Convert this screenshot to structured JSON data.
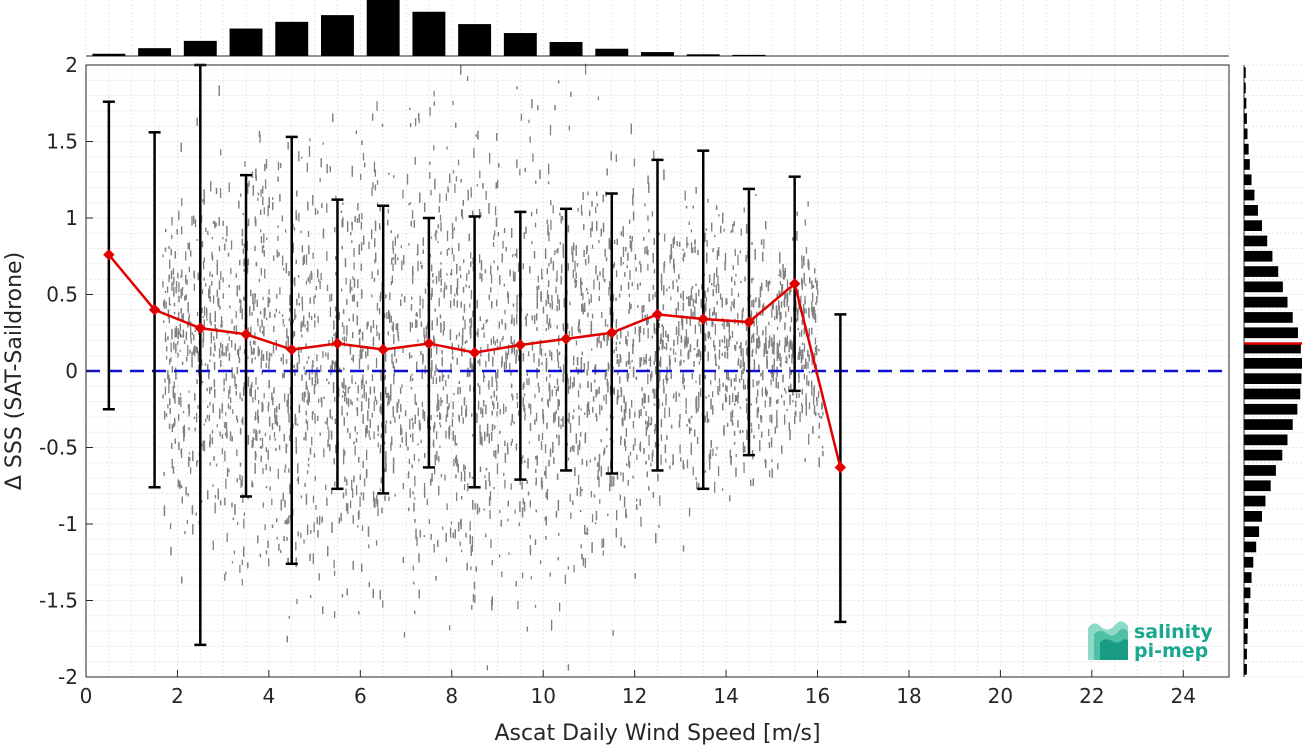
{
  "chart_data": {
    "type": "scatter",
    "xlabel": "Ascat Daily Wind Speed [m/s]",
    "ylabel": "Δ SSS (SAT-Saildrone)",
    "xlim": [
      0,
      25
    ],
    "ylim": [
      -2,
      2
    ],
    "xticks": [
      0,
      2,
      4,
      6,
      8,
      10,
      12,
      14,
      16,
      18,
      20,
      22,
      24
    ],
    "yticks": [
      -2,
      -1.5,
      -1,
      -0.5,
      0,
      0.5,
      1,
      1.5,
      2
    ],
    "xtick_labels": [
      "0",
      "2",
      "4",
      "6",
      "8",
      "10",
      "12",
      "14",
      "16",
      "18",
      "20",
      "22",
      "24"
    ],
    "ytick_labels": [
      "-2",
      "-1.5",
      "-1",
      "-0.5",
      "0",
      "0.5",
      "1",
      "1.5",
      "2"
    ],
    "grid": true,
    "colors": {
      "scatter": "#808080",
      "mean_line": "#e00000",
      "error_bars": "#000000",
      "zero_line": "#1010d0",
      "histograms": "#000000",
      "histogram_mean": "#e00000",
      "logo": "#1aa78f"
    },
    "binned_mean": {
      "x": [
        0.5,
        1.5,
        2.5,
        3.5,
        4.5,
        5.5,
        6.5,
        7.5,
        8.5,
        9.5,
        10.5,
        11.5,
        12.5,
        13.5,
        14.5,
        15.5,
        16.5
      ],
      "y": [
        0.76,
        0.4,
        0.28,
        0.24,
        0.14,
        0.18,
        0.14,
        0.18,
        0.12,
        0.17,
        0.21,
        0.25,
        0.37,
        0.34,
        0.32,
        0.57,
        -0.63
      ],
      "err_upper": [
        1.76,
        1.56,
        2.0,
        1.28,
        1.53,
        1.12,
        1.08,
        1.0,
        1.01,
        1.04,
        1.06,
        1.16,
        1.38,
        1.44,
        1.19,
        1.27,
        0.37
      ],
      "err_lower": [
        -0.25,
        -0.76,
        -1.79,
        -0.82,
        -1.26,
        -0.77,
        -0.8,
        -0.63,
        -0.76,
        -0.71,
        -0.65,
        -0.67,
        -0.65,
        -0.77,
        -0.55,
        -0.13,
        -1.64
      ]
    },
    "zero_line": 0,
    "scatter_extent": {
      "x_min": 0.5,
      "x_max": 16.2,
      "spread_by_bin": [
        0.9,
        1.4,
        1.7,
        1.9,
        2.0,
        2.0,
        2.0,
        2.0,
        2.0,
        2.0,
        1.9,
        1.8,
        1.6,
        1.4,
        1.2,
        0.9,
        0.6
      ]
    },
    "top_histogram": {
      "x": [
        0.5,
        1.5,
        2.5,
        3.5,
        4.5,
        5.5,
        6.5,
        7.5,
        8.5,
        9.5,
        10.5,
        11.5,
        12.5,
        13.5,
        14.5
      ],
      "counts": [
        0.04,
        0.14,
        0.27,
        0.49,
        0.61,
        0.73,
        1.0,
        0.79,
        0.57,
        0.41,
        0.25,
        0.13,
        0.07,
        0.03,
        0.02
      ]
    },
    "right_histogram": {
      "y": [
        -1.95,
        -1.85,
        -1.75,
        -1.65,
        -1.55,
        -1.45,
        -1.35,
        -1.25,
        -1.15,
        -1.05,
        -0.95,
        -0.85,
        -0.75,
        -0.65,
        -0.55,
        -0.45,
        -0.35,
        -0.25,
        -0.15,
        -0.05,
        0.05,
        0.15,
        0.25,
        0.35,
        0.45,
        0.55,
        0.65,
        0.75,
        0.85,
        0.95,
        1.05,
        1.15,
        1.25,
        1.35,
        1.45,
        1.55,
        1.65,
        1.75,
        1.85,
        1.95
      ],
      "counts": [
        0.05,
        0.05,
        0.06,
        0.07,
        0.08,
        0.11,
        0.13,
        0.16,
        0.21,
        0.26,
        0.31,
        0.37,
        0.46,
        0.55,
        0.66,
        0.75,
        0.84,
        0.92,
        0.97,
        0.99,
        1.0,
        0.98,
        0.93,
        0.84,
        0.75,
        0.67,
        0.59,
        0.49,
        0.4,
        0.31,
        0.24,
        0.18,
        0.13,
        0.1,
        0.08,
        0.06,
        0.05,
        0.04,
        0.03,
        0.03
      ],
      "mean_marker": 0.18
    }
  },
  "logo": {
    "line1": "salinity",
    "line2": "pi-mep"
  }
}
